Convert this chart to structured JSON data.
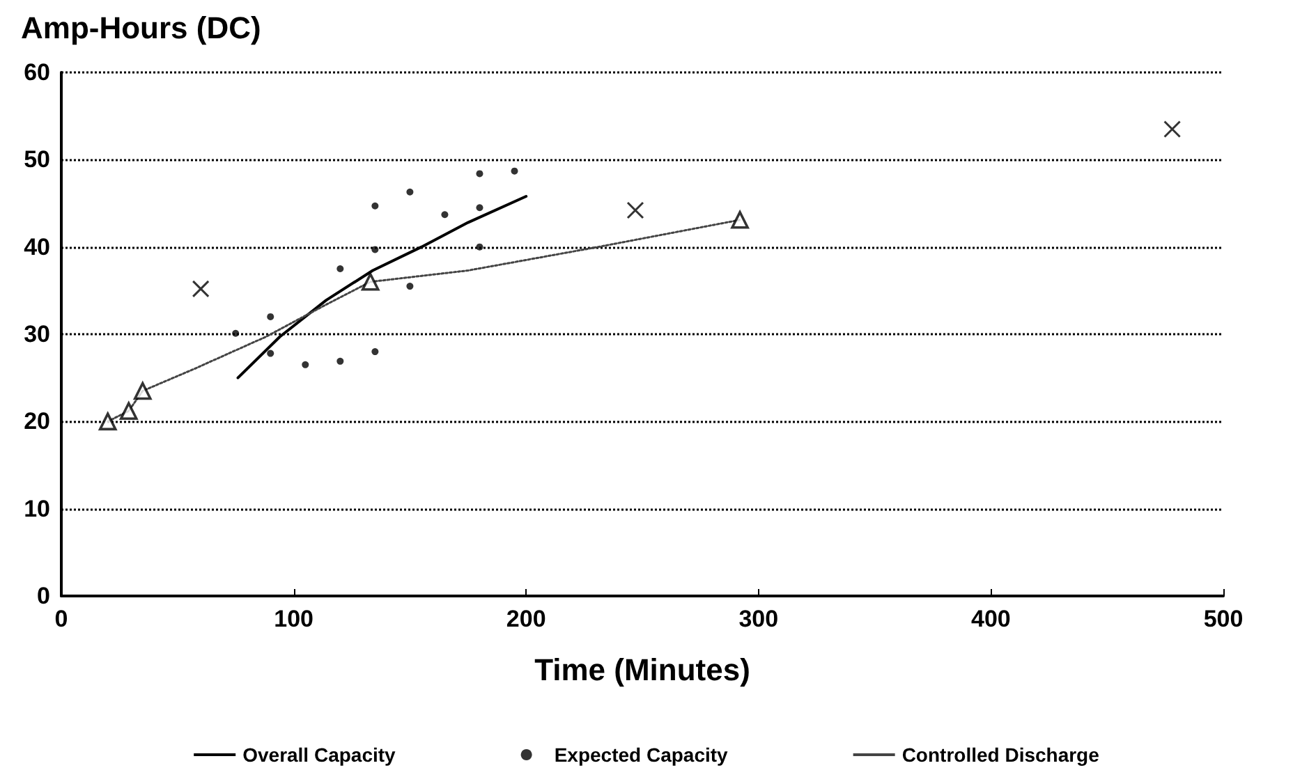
{
  "chart_data": {
    "type": "line",
    "ylabel": "Amp-Hours (DC)",
    "xlabel": "Time (Minutes)",
    "xlim": [
      0,
      500
    ],
    "xticks": [
      0,
      100,
      200,
      300,
      400,
      500
    ],
    "ylim": [
      0,
      60
    ],
    "yticks": [
      0,
      10,
      20,
      30,
      40,
      50,
      60
    ],
    "grid": "y",
    "legend": "bottom",
    "series": [
      {
        "name": "Overall Capacity",
        "type": "line",
        "color": "#000000",
        "line_style": "solid",
        "marker": "none",
        "x": [
          76,
          94,
          114,
          134,
          155,
          175,
          200
        ],
        "values": [
          25,
          29.7,
          33.9,
          37.3,
          40,
          42.8,
          45.8
        ]
      },
      {
        "name": "Expected Capacity",
        "type": "scatter",
        "color": "#000000",
        "marker": "circle",
        "x": [
          75,
          90,
          90,
          105,
          120,
          120,
          135,
          135,
          135,
          150,
          150,
          165,
          180,
          180,
          180,
          195
        ],
        "values": [
          30.1,
          32,
          27.8,
          26.5,
          37.5,
          26.9,
          44.7,
          39.7,
          28,
          46.3,
          35.5,
          43.7,
          48.4,
          44.5,
          40,
          48.7
        ]
      },
      {
        "name": "Controlled Discharge",
        "type": "line",
        "color": "#444444",
        "line_style": "dotted",
        "marker": "none",
        "x": [
          20,
          29,
          35,
          57,
          88,
          114,
          133,
          175,
          231,
          292
        ],
        "values": [
          20,
          21.2,
          23.5,
          26,
          29.7,
          33.4,
          36,
          37.3,
          40,
          43.1
        ]
      },
      {
        "type": "scatter",
        "color": "#000000",
        "marker": "triangle",
        "x": [
          20,
          29,
          35,
          133,
          292
        ],
        "values": [
          20,
          21.2,
          23.5,
          36,
          43.1
        ]
      },
      {
        "type": "scatter",
        "color": "#000000",
        "marker": "cross",
        "x": [
          60,
          247,
          478
        ],
        "values": [
          35.2,
          44.2,
          53.5
        ]
      }
    ]
  }
}
